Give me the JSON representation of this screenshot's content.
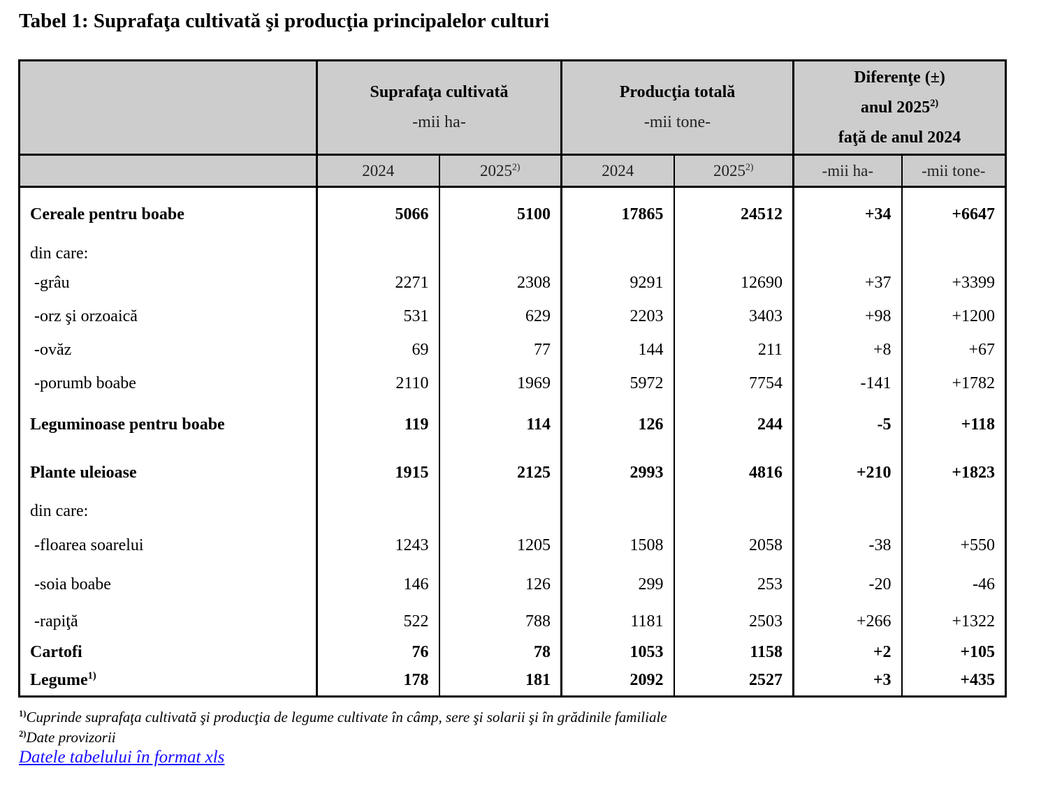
{
  "title": "Tabel 1: Suprafaţa cultivată şi producţia principalelor culturi",
  "header": {
    "suprafata": {
      "title": "Suprafaţa cultivată",
      "unit": "-mii ha-"
    },
    "productia": {
      "title": "Producţia totală",
      "unit": "-mii tone-"
    },
    "diferente": {
      "line1": "Diferenţe (±)",
      "line2": "anul 2025",
      "line2_sup": "2)",
      "line3": "faţă de anul 2024"
    },
    "years": {
      "y2024": "2024",
      "y2025": "2025",
      "y2025_sup": "2)"
    },
    "diff_units": {
      "ha": "-mii ha-",
      "tone": "-mii tone-"
    }
  },
  "rows": [
    {
      "label": "Cereale pentru boabe",
      "bold": true,
      "s24": "5066",
      "s25": "5100",
      "p24": "17865",
      "p25": "24512",
      "dha": "+34",
      "dt": "+6647"
    },
    {
      "label": "din care:",
      "s24": "",
      "s25": "",
      "p24": "",
      "p25": "",
      "dha": "",
      "dt": ""
    },
    {
      "label": "-grâu",
      "s24": "2271",
      "s25": "2308",
      "p24": "9291",
      "p25": "12690",
      "dha": "+37",
      "dt": "+3399"
    },
    {
      "label": "-orz şi orzoaică",
      "s24": "531",
      "s25": "629",
      "p24": "2203",
      "p25": "3403",
      "dha": "+98",
      "dt": "+1200"
    },
    {
      "label": "-ovăz",
      "s24": "69",
      "s25": "77",
      "p24": "144",
      "p25": "211",
      "dha": "+8",
      "dt": "+67"
    },
    {
      "label": "-porumb boabe",
      "s24": "2110",
      "s25": "1969",
      "p24": "5972",
      "p25": "7754",
      "dha": "-141",
      "dt": "+1782"
    },
    {
      "label": "Leguminoase pentru boabe",
      "bold": true,
      "s24": "119",
      "s25": "114",
      "p24": "126",
      "p25": "244",
      "dha": "-5",
      "dt": "+118"
    },
    {
      "label": "Plante uleioase",
      "bold": true,
      "s24": "1915",
      "s25": "2125",
      "p24": "2993",
      "p25": "4816",
      "dha": "+210",
      "dt": "+1823"
    },
    {
      "label": "din care:",
      "s24": "",
      "s25": "",
      "p24": "",
      "p25": "",
      "dha": "",
      "dt": ""
    },
    {
      "label": "-floarea soarelui",
      "s24": "1243",
      "s25": "1205",
      "p24": "1508",
      "p25": "2058",
      "dha": "-38",
      "dt": "+550"
    },
    {
      "label": "-soia boabe",
      "s24": "146",
      "s25": "126",
      "p24": "299",
      "p25": "253",
      "dha": "-20",
      "dt": "-46"
    },
    {
      "label": "-rapiţă",
      "s24": "522",
      "s25": "788",
      "p24": "1181",
      "p25": "2503",
      "dha": "+266",
      "dt": "+1322"
    },
    {
      "label": "Cartofi",
      "bold": true,
      "s24": "76",
      "s25": "78",
      "p24": "1053",
      "p25": "1158",
      "dha": "+2",
      "dt": "+105"
    },
    {
      "label": "Legume",
      "label_sup": "1)",
      "bold": true,
      "s24": "178",
      "s25": "181",
      "p24": "2092",
      "p25": "2527",
      "dha": "+3",
      "dt": "+435"
    }
  ],
  "footnotes": [
    {
      "mark": "1)",
      "text": "Cuprinde suprafaţa cultivată şi producţia de legume cultivate în câmp, sere şi solarii şi în grădinile familiale"
    },
    {
      "mark": "2)",
      "text": "Date provizorii"
    }
  ],
  "link_text": "Datele tabelului în format xls"
}
